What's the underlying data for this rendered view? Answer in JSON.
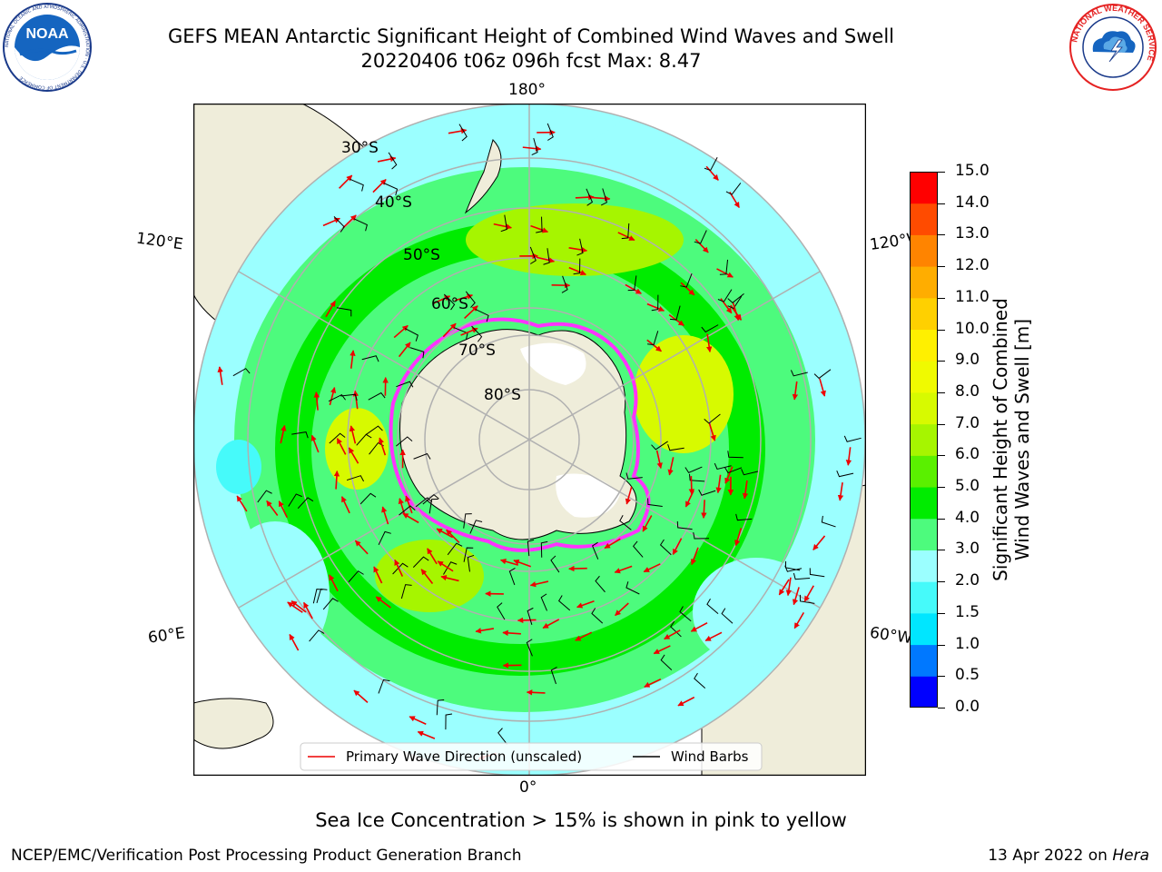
{
  "header": {
    "title_line1": "GEFS MEAN Antarctic Significant Height of Combined Wind Waves and Swell",
    "title_line2": "20220406 t06z 096h fcst   Max: 8.47"
  },
  "logos": {
    "noaa_text": "NOAA",
    "noaa_ring_text": "NATIONAL OCEANIC AND ATMOSPHERIC ADMINISTRATION · U.S. DEPARTMENT OF COMMERCE",
    "nws_ring_text": "NATIONAL WEATHER SERVICE"
  },
  "map": {
    "longitude_labels": {
      "top": "180°",
      "bottom": "0°",
      "upper_left": "120°E",
      "upper_right": "120°W",
      "lower_left": "60°E",
      "lower_right": "60°W"
    },
    "latitude_labels": [
      "30°S",
      "40°S",
      "50°S",
      "60°S",
      "70°S",
      "80°S"
    ],
    "legend": {
      "wave_direction": "Primary Wave Direction (unscaled)",
      "wind_barbs": "Wind Barbs"
    },
    "colors": {
      "land": "#efedda",
      "ice": "#ffffff",
      "ice_edge": "#ff33ff",
      "wave_arrow": "#ee0000",
      "wind_barb": "#000000",
      "graticule": "#b0b0b0"
    }
  },
  "colorbar": {
    "title_line1": "Significant Height of Combined",
    "title_line2": "Wind Waves and Swell [m]",
    "ticks": [
      "0.0",
      "0.5",
      "1.0",
      "1.5",
      "2.0",
      "3.0",
      "4.0",
      "5.0",
      "6.0",
      "7.0",
      "8.0",
      "9.0",
      "10.0",
      "11.0",
      "12.0",
      "13.0",
      "14.0",
      "15.0"
    ],
    "colors": [
      "#0000ff",
      "#0078ff",
      "#00e6ff",
      "#46fafa",
      "#9bffff",
      "#4dfb7d",
      "#00ec00",
      "#5af000",
      "#a6f500",
      "#d7fa00",
      "#f0fa00",
      "#fff000",
      "#ffd000",
      "#ffad00",
      "#ff8400",
      "#ff4b00",
      "#ff0000"
    ]
  },
  "footer": {
    "ice_note": "Sea Ice Concentration > 15% is shown in pink to yellow",
    "credit": "NCEP/EMC/Verification Post Processing Product Generation Branch",
    "date_prefix": "13 Apr 2022 on ",
    "date_machine": "Hera"
  }
}
